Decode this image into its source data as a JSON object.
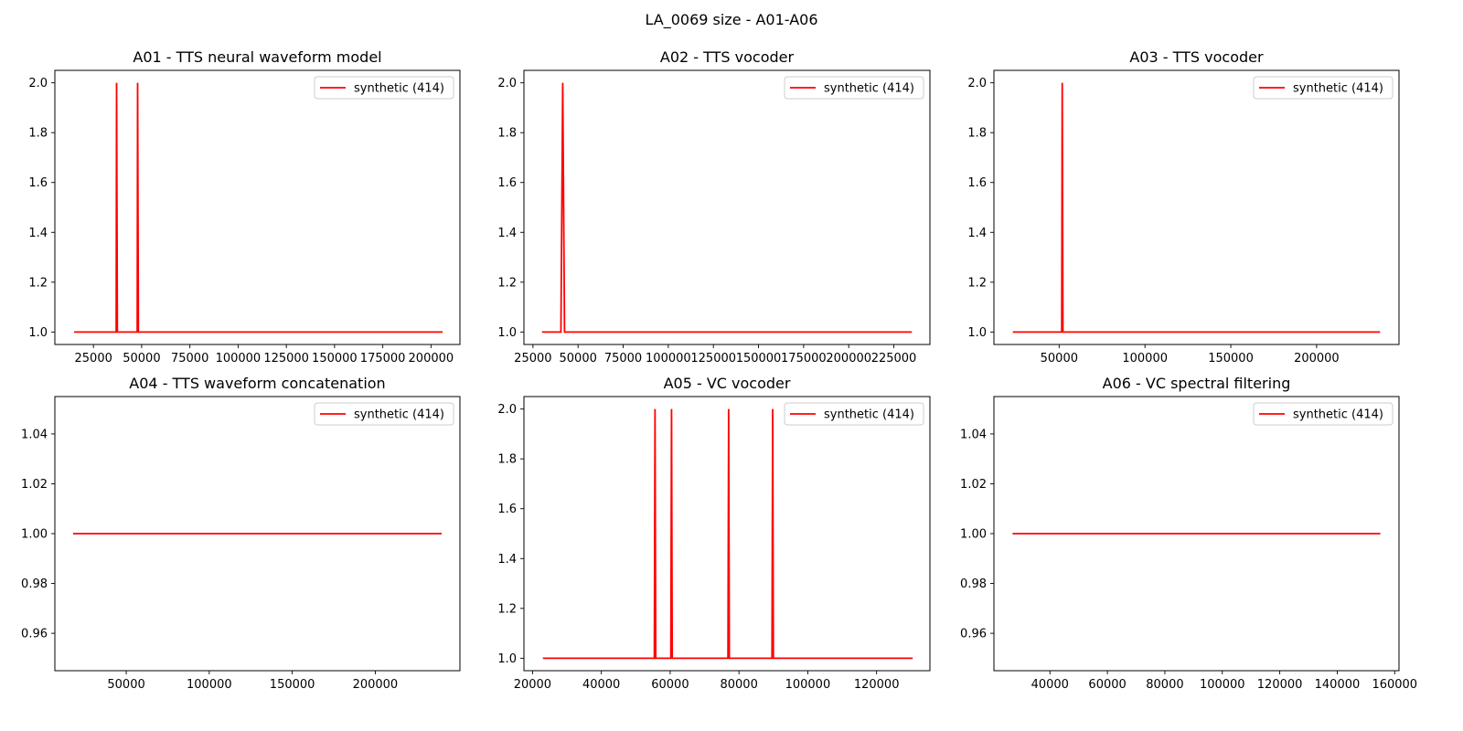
{
  "figure": {
    "suptitle": "LA_0069 size - A01-A06"
  },
  "style": {
    "line_color": "#ff0000",
    "legend_loc": "upper right",
    "grid": false
  },
  "chart_data": [
    {
      "type": "line",
      "title": "A01 - TTS neural waveform model",
      "xlim": [
        5000,
        215000
      ],
      "ylim": [
        0.95,
        2.05
      ],
      "xticks": [
        25000,
        50000,
        75000,
        100000,
        125000,
        150000,
        175000,
        200000
      ],
      "yticks": [
        1.0,
        1.2,
        1.4,
        1.6,
        1.8,
        2.0
      ],
      "ytick_format": "1",
      "series": [
        {
          "name": "synthetic (414)",
          "color": "#ff0000",
          "x": [
            15000,
            36800,
            37000,
            37400,
            47700,
            47900,
            48300,
            206000
          ],
          "y": [
            1,
            1,
            2,
            1,
            1,
            2,
            1,
            1
          ]
        }
      ]
    },
    {
      "type": "line",
      "title": "A02 - TTS vocoder",
      "xlim": [
        20000,
        245000
      ],
      "ylim": [
        0.95,
        2.05
      ],
      "xticks": [
        25000,
        50000,
        75000,
        100000,
        125000,
        150000,
        175000,
        200000,
        225000
      ],
      "yticks": [
        1.0,
        1.2,
        1.4,
        1.6,
        1.8,
        2.0
      ],
      "ytick_format": "1",
      "series": [
        {
          "name": "synthetic (414)",
          "color": "#ff0000",
          "x": [
            30000,
            40500,
            41500,
            42500,
            235000
          ],
          "y": [
            1,
            1,
            2,
            1,
            1
          ]
        }
      ]
    },
    {
      "type": "line",
      "title": "A03 - TTS vocoder",
      "xlim": [
        12000,
        248000
      ],
      "ylim": [
        0.95,
        2.05
      ],
      "xticks": [
        50000,
        100000,
        150000,
        200000
      ],
      "yticks": [
        1.0,
        1.2,
        1.4,
        1.6,
        1.8,
        2.0
      ],
      "ytick_format": "1",
      "series": [
        {
          "name": "synthetic (414)",
          "color": "#ff0000",
          "x": [
            23000,
            51500,
            51800,
            52200,
            237000
          ],
          "y": [
            1,
            1,
            2,
            1,
            1
          ]
        }
      ]
    },
    {
      "type": "line",
      "title": "A04 - TTS waveform concatenation",
      "xlim": [
        7000,
        251000
      ],
      "ylim": [
        0.945,
        1.055
      ],
      "xticks": [
        50000,
        100000,
        150000,
        200000
      ],
      "yticks": [
        0.96,
        0.98,
        1.0,
        1.02,
        1.04
      ],
      "ytick_format": "2",
      "series": [
        {
          "name": "synthetic (414)",
          "color": "#ff0000",
          "x": [
            18000,
            240000
          ],
          "y": [
            1,
            1
          ]
        }
      ]
    },
    {
      "type": "line",
      "title": "A05 - VC vocoder",
      "xlim": [
        17500,
        135500
      ],
      "ylim": [
        0.95,
        2.05
      ],
      "xticks": [
        20000,
        40000,
        60000,
        80000,
        100000,
        120000
      ],
      "yticks": [
        1.0,
        1.2,
        1.4,
        1.6,
        1.8,
        2.0
      ],
      "ytick_format": "1",
      "series": [
        {
          "name": "synthetic (414)",
          "color": "#ff0000",
          "x": [
            23000,
            55400,
            55600,
            55800,
            60200,
            60400,
            60600,
            76800,
            77000,
            77200,
            89600,
            89800,
            90000,
            130500
          ],
          "y": [
            1,
            1,
            2,
            1,
            1,
            2,
            1,
            1,
            2,
            1,
            1,
            2,
            1,
            1
          ]
        }
      ]
    },
    {
      "type": "line",
      "title": "A06 - VC spectral filtering",
      "xlim": [
        20500,
        161500
      ],
      "ylim": [
        0.945,
        1.055
      ],
      "xticks": [
        40000,
        60000,
        80000,
        100000,
        120000,
        140000,
        160000
      ],
      "yticks": [
        0.96,
        0.98,
        1.0,
        1.02,
        1.04
      ],
      "ytick_format": "2",
      "series": [
        {
          "name": "synthetic (414)",
          "color": "#ff0000",
          "x": [
            27000,
            155000
          ],
          "y": [
            1,
            1
          ]
        }
      ]
    }
  ]
}
